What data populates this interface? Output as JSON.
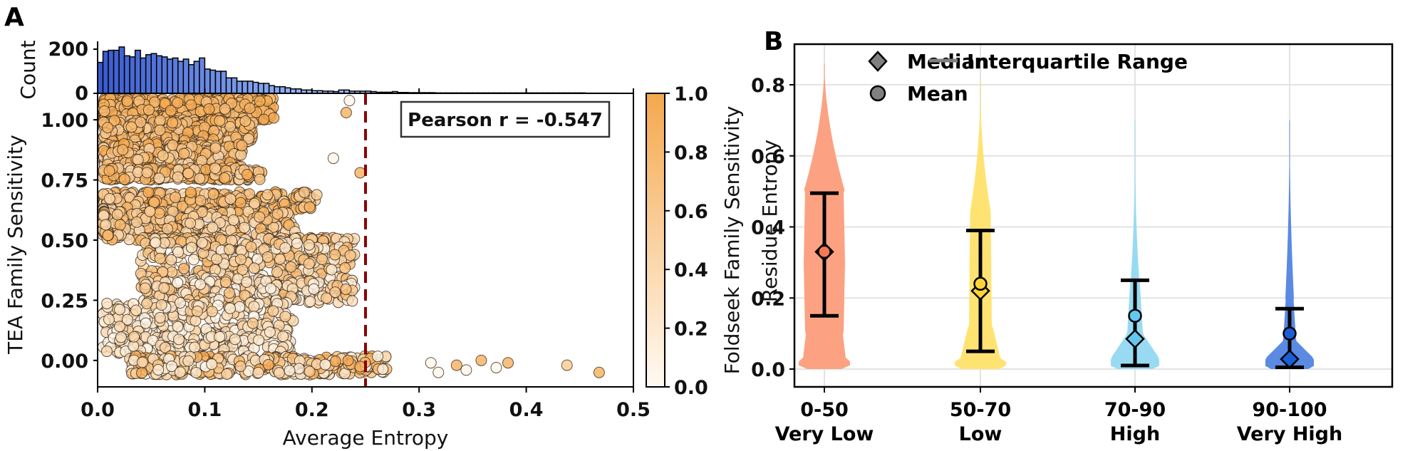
{
  "figure": {
    "panel_a_letter": "A",
    "panel_b_letter": "B"
  },
  "chart_data": [
    {
      "id": "histogram",
      "type": "bar",
      "title": "",
      "xlabel": "",
      "ylabel": "Count",
      "ylim": [
        0,
        250
      ],
      "yticks": [
        0,
        200
      ],
      "ytick_labels": [
        "0",
        "200"
      ],
      "bin_range": [
        0.0,
        0.5
      ],
      "bin_width": 0.005,
      "colors": {
        "dark": "#3a5bd0",
        "light": "#9bb8f5",
        "edge": "#000000"
      },
      "values": [
        140,
        190,
        195,
        195,
        210,
        170,
        165,
        195,
        160,
        175,
        180,
        170,
        165,
        155,
        160,
        145,
        155,
        130,
        145,
        160,
        110,
        105,
        100,
        100,
        70,
        70,
        55,
        55,
        55,
        50,
        45,
        45,
        35,
        30,
        30,
        25,
        20,
        20,
        15,
        15,
        12,
        12,
        10,
        10,
        8,
        15,
        15,
        10,
        10,
        10,
        10,
        8,
        5,
        5,
        5,
        8,
        4,
        4,
        3,
        3,
        3,
        3,
        3,
        2,
        2,
        2,
        2,
        2,
        2,
        2,
        2,
        2,
        2,
        2,
        2,
        2,
        2,
        2,
        2,
        2,
        2,
        2,
        2,
        2,
        2,
        2,
        2,
        2,
        2,
        2,
        2,
        1,
        1,
        1,
        1,
        1,
        1,
        0,
        0,
        0
      ]
    },
    {
      "id": "scatter",
      "type": "scatter",
      "title": "",
      "xlabel": "Average Entropy",
      "ylabel": "TEA Family Sensitivity",
      "xlim": [
        0.0,
        0.5
      ],
      "ylim": [
        -0.11,
        1.11
      ],
      "xticks": [
        0.0,
        0.1,
        0.2,
        0.3,
        0.4,
        0.5
      ],
      "xtick_labels": [
        "0.0",
        "0.1",
        "0.2",
        "0.3",
        "0.4",
        "0.5"
      ],
      "yticks": [
        0.0,
        0.25,
        0.5,
        0.75,
        1.0
      ],
      "ytick_labels": [
        "0.00",
        "0.25",
        "0.50",
        "0.75",
        "1.00"
      ],
      "color_variable": "Foldseek Family Sensitivity",
      "threshold_line": {
        "x": 0.25,
        "color": "#8b0000",
        "style": "dashed"
      },
      "annotation": "Pearson r = -0.547",
      "pearson_r": -0.547,
      "points_note": "dense cloud (~4000 points): high sensitivity near x 0.0-0.15, banded at 1.0, 0.75, 0.67, 0.5, 0.33, 0.25; cluster near y=0 spanning x 0.05-0.47",
      "outliers": [
        {
          "x": 0.438,
          "y": -0.02,
          "c": 0.6
        },
        {
          "x": 0.468,
          "y": -0.05,
          "c": 0.9
        },
        {
          "x": 0.383,
          "y": -0.01,
          "c": 0.9
        },
        {
          "x": 0.358,
          "y": 0.0,
          "c": 0.9
        },
        {
          "x": 0.372,
          "y": -0.03,
          "c": 0.05
        },
        {
          "x": 0.344,
          "y": -0.04,
          "c": 0.05
        },
        {
          "x": 0.335,
          "y": -0.02,
          "c": 0.9
        },
        {
          "x": 0.318,
          "y": -0.05,
          "c": 0.05
        },
        {
          "x": 0.311,
          "y": -0.01,
          "c": 0.05
        },
        {
          "x": 0.235,
          "y": 1.08,
          "c": 0.05
        },
        {
          "x": 0.232,
          "y": 1.03,
          "c": 0.9
        },
        {
          "x": 0.22,
          "y": 0.84,
          "c": 0.05
        },
        {
          "x": 0.245,
          "y": 0.78,
          "c": 0.9
        }
      ],
      "colorbar": {
        "label": "Foldseek Family Sensitivity",
        "range": [
          0.0,
          1.0
        ],
        "ticks": [
          0.0,
          0.2,
          0.4,
          0.6,
          0.8,
          1.0
        ],
        "tick_labels": [
          "0.0",
          "0.2",
          "0.4",
          "0.6",
          "0.8",
          "1.0"
        ],
        "color_low": "#fffaf2",
        "color_high": "#f5a84d"
      }
    },
    {
      "id": "violin",
      "type": "violin",
      "title": "",
      "xlabel": "",
      "ylabel": "Residue Entropy",
      "ylim": [
        -0.05,
        0.92
      ],
      "yticks": [
        0.0,
        0.2,
        0.4,
        0.6,
        0.8
      ],
      "ytick_labels": [
        "0.0",
        "0.2",
        "0.4",
        "0.6",
        "0.8"
      ],
      "grid": true,
      "legend_position": "top",
      "legend": [
        {
          "label": "Median",
          "marker": "diamond"
        },
        {
          "label": "Mean",
          "marker": "circle"
        },
        {
          "label": "Interquartile Range",
          "marker": "line"
        }
      ],
      "categories": [
        {
          "range": "0-50",
          "label": "Very Low",
          "color": "#fca282",
          "marker_color": "#f47a52",
          "median": 0.33,
          "mean": 0.33,
          "q1": 0.15,
          "q3": 0.495,
          "max": 0.86
        },
        {
          "range": "50-70",
          "label": "Low",
          "color": "#ffe372",
          "marker_color": "#fcd535",
          "median": 0.22,
          "mean": 0.24,
          "q1": 0.05,
          "q3": 0.39,
          "max": 0.82
        },
        {
          "range": "70-90",
          "label": "High",
          "color": "#99daf3",
          "marker_color": "#63c8ef",
          "median": 0.085,
          "mean": 0.15,
          "q1": 0.01,
          "q3": 0.25,
          "max": 0.7
        },
        {
          "range": "90-100",
          "label": "Very High",
          "color": "#5b8ae3",
          "marker_color": "#1a5fd8",
          "median": 0.028,
          "mean": 0.1,
          "q1": 0.005,
          "q3": 0.17,
          "max": 0.7
        }
      ]
    }
  ]
}
